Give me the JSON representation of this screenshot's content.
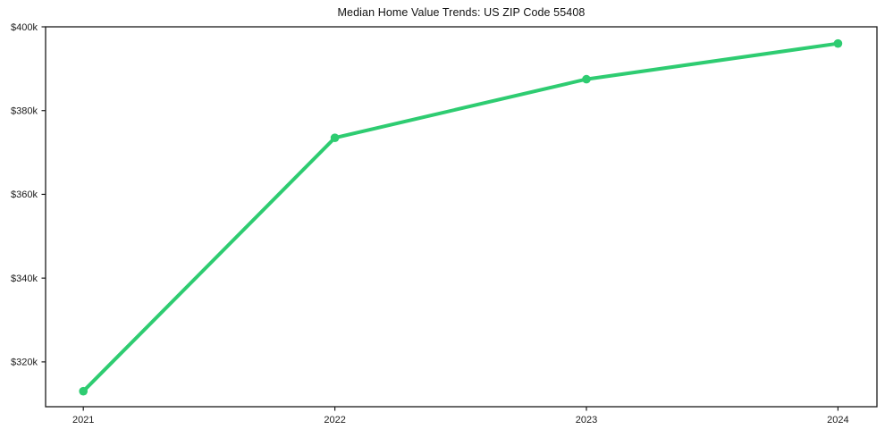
{
  "chart_data": {
    "type": "line",
    "title": "Median Home Value Trends: US ZIP Code 55408",
    "categories": [
      2021,
      2022,
      2023,
      2024
    ],
    "values": [
      313000,
      373500,
      387500,
      396000
    ],
    "x_tick_labels": [
      "2021",
      "2022",
      "2023",
      "2024"
    ],
    "y_tick_values": [
      320000,
      340000,
      360000,
      380000,
      400000
    ],
    "y_tick_labels": [
      "$320k",
      "$340k",
      "$360k",
      "$380k",
      "$400k"
    ],
    "xlim": [
      2020.85,
      2024.155
    ],
    "ylim": [
      309300,
      400000
    ],
    "grid": false,
    "legend_position": "none",
    "line_color": "#2ecc71",
    "marker": "circle",
    "axis_color": "#1a1a1a",
    "background_color": "#ffffff"
  }
}
